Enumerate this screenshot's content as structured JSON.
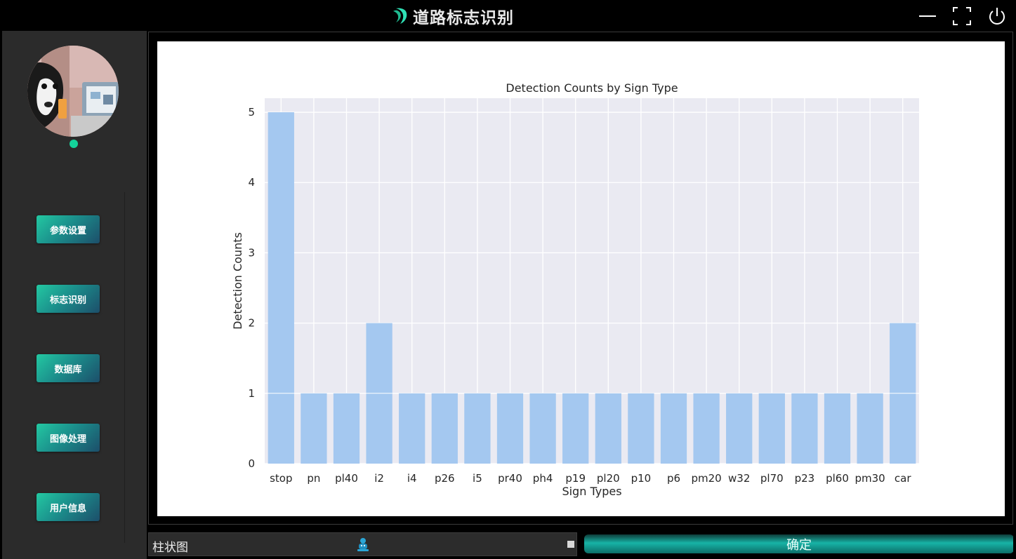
{
  "app": {
    "title": "道路标志识别",
    "accent_color": "#23c9a2",
    "logo_icon": "crescent-logo-icon",
    "window_controls": [
      "minimize-icon",
      "maximize-icon",
      "power-icon"
    ]
  },
  "sidebar": {
    "avatar_icon": "user-avatar",
    "status_color": "#14d39a",
    "nav": [
      {
        "label": "参数设置"
      },
      {
        "label": "标志识别"
      },
      {
        "label": "数据库"
      },
      {
        "label": "图像处理"
      },
      {
        "label": "用户信息"
      }
    ]
  },
  "controls": {
    "chart_type": "柱状图",
    "chart_type_icon": "robot-icon",
    "confirm_label": "确定"
  },
  "chart_data": {
    "type": "bar",
    "title": "Detection Counts by Sign Type",
    "xlabel": "Sign Types",
    "ylabel": "Detection Counts",
    "categories": [
      "stop",
      "pn",
      "pl40",
      "i2",
      "i4",
      "p26",
      "i5",
      "pr40",
      "ph4",
      "p19",
      "pl20",
      "p10",
      "p6",
      "pm20",
      "w32",
      "pl70",
      "p23",
      "pl60",
      "pm30",
      "car"
    ],
    "values": [
      5,
      1,
      1,
      2,
      1,
      1,
      1,
      1,
      1,
      1,
      1,
      1,
      1,
      1,
      1,
      1,
      1,
      1,
      1,
      2
    ],
    "ylim": [
      0,
      5.2
    ],
    "yticks": [
      0,
      1,
      2,
      3,
      4,
      5
    ],
    "grid": true,
    "bar_color": "#a4c8f0",
    "background_color": "#eaeaf2"
  }
}
